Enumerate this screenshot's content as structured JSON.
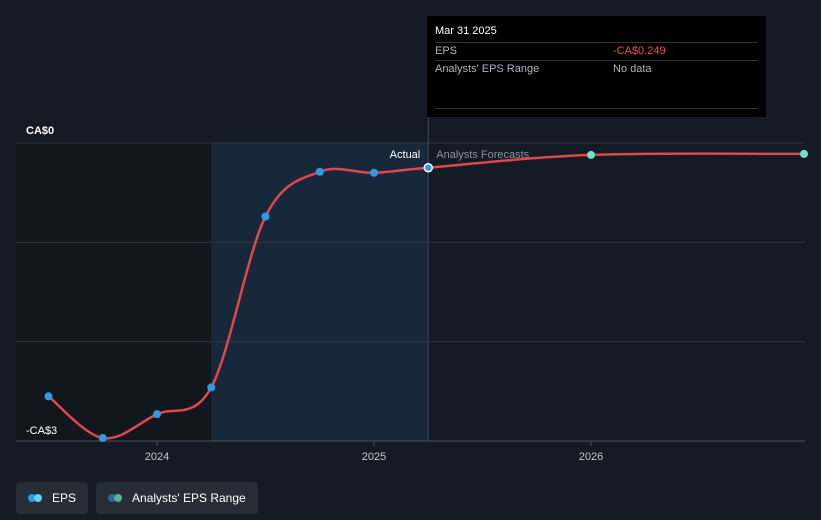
{
  "chart_data": {
    "type": "line",
    "title": "",
    "xlabel": "",
    "ylabel": "",
    "y_tick_labels": [
      "CA$0",
      "-CA$3"
    ],
    "ylim": [
      -3,
      0
    ],
    "x_tick_labels": [
      "2024",
      "2025",
      "2026"
    ],
    "x_ticks": [
      2024.0,
      2025.0,
      2026.0
    ],
    "xlim": [
      2023.4,
      2026.99
    ],
    "divider_x": 2025.25,
    "highlight_start_x": 2024.25,
    "region_labels": {
      "actual": "Actual",
      "forecast": "Analysts Forecasts"
    },
    "grid": true,
    "legend_position": "bottom-left",
    "series": [
      {
        "name": "EPS",
        "color": "#e0474c",
        "points": [
          {
            "x": 2023.5,
            "y": -2.55
          },
          {
            "x": 2023.75,
            "y": -2.97
          },
          {
            "x": 2024.0,
            "y": -2.73
          },
          {
            "x": 2024.25,
            "y": -2.46
          },
          {
            "x": 2024.5,
            "y": -0.74
          },
          {
            "x": 2024.75,
            "y": -0.29
          },
          {
            "x": 2025.0,
            "y": -0.3
          },
          {
            "x": 2025.25,
            "y": -0.249
          }
        ],
        "forecast_points": [
          {
            "x": 2026.0,
            "y": -0.12
          },
          {
            "x": 2026.99,
            "y": -0.11
          }
        ]
      }
    ]
  },
  "tooltip": {
    "date": "Mar 31 2025",
    "rows": [
      {
        "label": "EPS",
        "value": "-CA$0.249"
      },
      {
        "label": "Analysts' EPS Range",
        "value": "No data"
      }
    ]
  },
  "legend": {
    "items": [
      {
        "label": "EPS",
        "colors": [
          "#2f9be8",
          "#5ad6f0"
        ]
      },
      {
        "label": "Analysts' EPS Range",
        "colors": [
          "#2d6d87",
          "#5fae9e"
        ]
      }
    ]
  },
  "colors": {
    "background": "#151b24",
    "actual_shade": "#17283a",
    "past_shade": "#12171e",
    "point_actual": "#2f9be8",
    "point_forecast": "#72e0c9",
    "grid": "#2e353f"
  }
}
